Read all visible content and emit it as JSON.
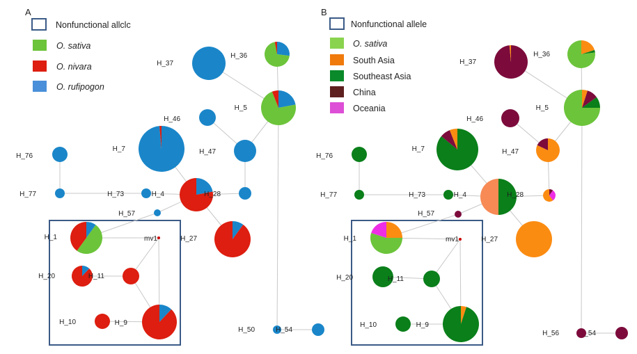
{
  "panels": [
    {
      "letter": "A",
      "legend": [
        {
          "key": "nonfunctional",
          "text": "Nonfunctional allclc",
          "italic": false
        },
        {
          "key": "sativa",
          "text": "O. sativa",
          "italic": true
        },
        {
          "key": "nivara",
          "text": "O. nivara",
          "italic": true
        },
        {
          "key": "rufipogon",
          "text": "O. rufipogon",
          "italic": true
        }
      ]
    },
    {
      "letter": "B",
      "legend": [
        {
          "key": "nonfunctional",
          "text": "Nonfunctional allele",
          "italic": false
        },
        {
          "key": "sativa",
          "text": "O. sativa",
          "italic": true
        },
        {
          "key": "southasia",
          "text": "South Asia",
          "italic": false
        },
        {
          "key": "seasia",
          "text": "Southeast Asia",
          "italic": false
        },
        {
          "key": "china",
          "text": "China",
          "italic": false
        },
        {
          "key": "oceania",
          "text": "Oceania",
          "italic": false
        }
      ]
    }
  ],
  "colors": {
    "nonfunctional_border": "#3a5a86",
    "sativa": "#6cc43a",
    "nivara": "#dd1e10",
    "rufipogon": "#1a86c9",
    "southasia": "#fb8c12",
    "seasia": "#0a7f1a",
    "china": "#7c0b3c",
    "oceania": "#ee2ee5",
    "mixed_orange": "#f78a55",
    "node_mv": "#cc0000"
  },
  "haplotypes": [
    {
      "id": "H_37",
      "label": "H_37",
      "a": [
        [
          "rufipogon",
          1
        ]
      ],
      "b": [
        [
          "china",
          0.985
        ],
        [
          "southasia",
          0.015
        ]
      ]
    },
    {
      "id": "H_36",
      "label": "H_36",
      "a": [
        [
          "rufipogon",
          0.27
        ],
        [
          "sativa",
          0.7
        ],
        [
          "nivara",
          0.03
        ]
      ],
      "b": [
        [
          "southasia",
          0.2
        ],
        [
          "seasia",
          0.03
        ],
        [
          "sativa",
          0.77
        ]
      ]
    },
    {
      "id": "H_5",
      "label": "H_5",
      "a": [
        [
          "rufipogon",
          0.22
        ],
        [
          "sativa",
          0.72
        ],
        [
          "nivara",
          0.06
        ]
      ],
      "b": [
        [
          "southasia",
          0.05
        ],
        [
          "china",
          0.1
        ],
        [
          "seasia",
          0.1
        ],
        [
          "sativa",
          0.75
        ]
      ]
    },
    {
      "id": "H_46",
      "label": "H_46",
      "a": [
        [
          "rufipogon",
          1
        ]
      ],
      "b": [
        [
          "china",
          1
        ]
      ]
    },
    {
      "id": "H_7",
      "label": "H_7",
      "a": [
        [
          "rufipogon",
          0.985
        ],
        [
          "nivara",
          0.015
        ]
      ],
      "b": [
        [
          "seasia",
          0.86
        ],
        [
          "china",
          0.08
        ],
        [
          "southasia",
          0.06
        ]
      ]
    },
    {
      "id": "H_47",
      "label": "H_47",
      "a": [
        [
          "rufipogon",
          1
        ]
      ],
      "b": [
        [
          "southasia",
          0.82
        ],
        [
          "china",
          0.18
        ]
      ]
    },
    {
      "id": "H_76",
      "label": "H_76",
      "a": [
        [
          "rufipogon",
          1
        ]
      ],
      "b": [
        [
          "seasia",
          1
        ]
      ]
    },
    {
      "id": "H_77",
      "label": "H_77",
      "a": [
        [
          "rufipogon",
          1
        ]
      ],
      "b": [
        [
          "seasia",
          1
        ]
      ]
    },
    {
      "id": "H_73",
      "label": "H_73",
      "a": [
        [
          "rufipogon",
          1
        ]
      ],
      "b": [
        [
          "seasia",
          1
        ]
      ]
    },
    {
      "id": "H_4",
      "label": "H_4",
      "a": [
        [
          "rufipogon",
          0.22
        ],
        [
          "nivara",
          0.78
        ]
      ],
      "b": [
        [
          "seasia",
          0.5
        ],
        [
          "mixed_orange",
          0.5
        ]
      ]
    },
    {
      "id": "H_28",
      "label": "H_28",
      "a": [
        [
          "rufipogon",
          1
        ]
      ],
      "b": [
        [
          "china",
          0.1
        ],
        [
          "oceania",
          0.3
        ],
        [
          "southasia",
          0.6
        ]
      ]
    },
    {
      "id": "H_57",
      "label": "H_57",
      "a": [
        [
          "rufipogon",
          1
        ]
      ],
      "b": [
        [
          "china",
          1
        ]
      ]
    },
    {
      "id": "H_27",
      "label": "H_27",
      "a": [
        [
          "rufipogon",
          0.1
        ],
        [
          "nivara",
          0.9
        ]
      ],
      "b": [
        [
          "southasia",
          1
        ]
      ]
    },
    {
      "id": "H_1",
      "label": "H_1",
      "a": [
        [
          "rufipogon",
          0.1
        ],
        [
          "sativa",
          0.5
        ],
        [
          "nivara",
          0.4
        ]
      ],
      "b": [
        [
          "southasia",
          0.25
        ],
        [
          "sativa",
          0.55
        ],
        [
          "oceania",
          0.2
        ]
      ]
    },
    {
      "id": "mv1",
      "label": "mv1",
      "a": [
        [
          "node_mv",
          1
        ]
      ],
      "b": [
        [
          "node_mv",
          1
        ]
      ]
    },
    {
      "id": "H_20",
      "label": "H_20",
      "a": [
        [
          "rufipogon",
          0.12
        ],
        [
          "nivara",
          0.88
        ]
      ],
      "b": [
        [
          "seasia",
          1
        ]
      ]
    },
    {
      "id": "H_11",
      "label": "H_11",
      "a": [
        [
          "nivara",
          1
        ]
      ],
      "b": [
        [
          "seasia",
          1
        ]
      ]
    },
    {
      "id": "H_10",
      "label": "H_10",
      "a": [
        [
          "nivara",
          1
        ]
      ],
      "b": [
        [
          "seasia",
          1
        ]
      ]
    },
    {
      "id": "H_9",
      "label": "H_9",
      "a": [
        [
          "rufipogon",
          0.12
        ],
        [
          "nivara",
          0.88
        ]
      ],
      "b": [
        [
          "southasia",
          0.05
        ],
        [
          "seasia",
          0.95
        ]
      ]
    },
    {
      "id": "H_50",
      "label": "H_50",
      "a": [
        [
          "rufipogon",
          1
        ]
      ],
      "b": []
    },
    {
      "id": "H_54",
      "label": "H_54",
      "a": [
        [
          "rufipogon",
          1
        ]
      ],
      "b": [
        [
          "china",
          1
        ]
      ]
    },
    {
      "id": "H_56",
      "label": "H_56",
      "a": [],
      "b": [
        [
          "china",
          1
        ]
      ]
    }
  ],
  "edges": [
    [
      "H_37",
      "H_5"
    ],
    [
      "H_36",
      "H_5"
    ],
    [
      "H_5",
      "H_47"
    ],
    [
      "H_46",
      "H_47"
    ],
    [
      "H_47",
      "H_28"
    ],
    [
      "H_7",
      "H_4"
    ],
    [
      "H_4",
      "H_28"
    ],
    [
      "H_4",
      "H_27"
    ],
    [
      "H_4",
      "H_73"
    ],
    [
      "H_73",
      "H_77"
    ],
    [
      "H_76",
      "H_77"
    ],
    [
      "H_4",
      "H_57"
    ],
    [
      "H_57",
      "H_1"
    ],
    [
      "H_1",
      "mv1"
    ],
    [
      "mv1",
      "H_11"
    ],
    [
      "mv1",
      "H_9"
    ],
    [
      "H_20",
      "H_11"
    ],
    [
      "H_11",
      "H_9"
    ],
    [
      "H_10",
      "H_9"
    ],
    [
      "H_5",
      "H_50"
    ],
    [
      "H_50",
      "H_54"
    ],
    [
      "H_5",
      "H_56"
    ],
    [
      "H_56",
      "H_54"
    ]
  ]
}
